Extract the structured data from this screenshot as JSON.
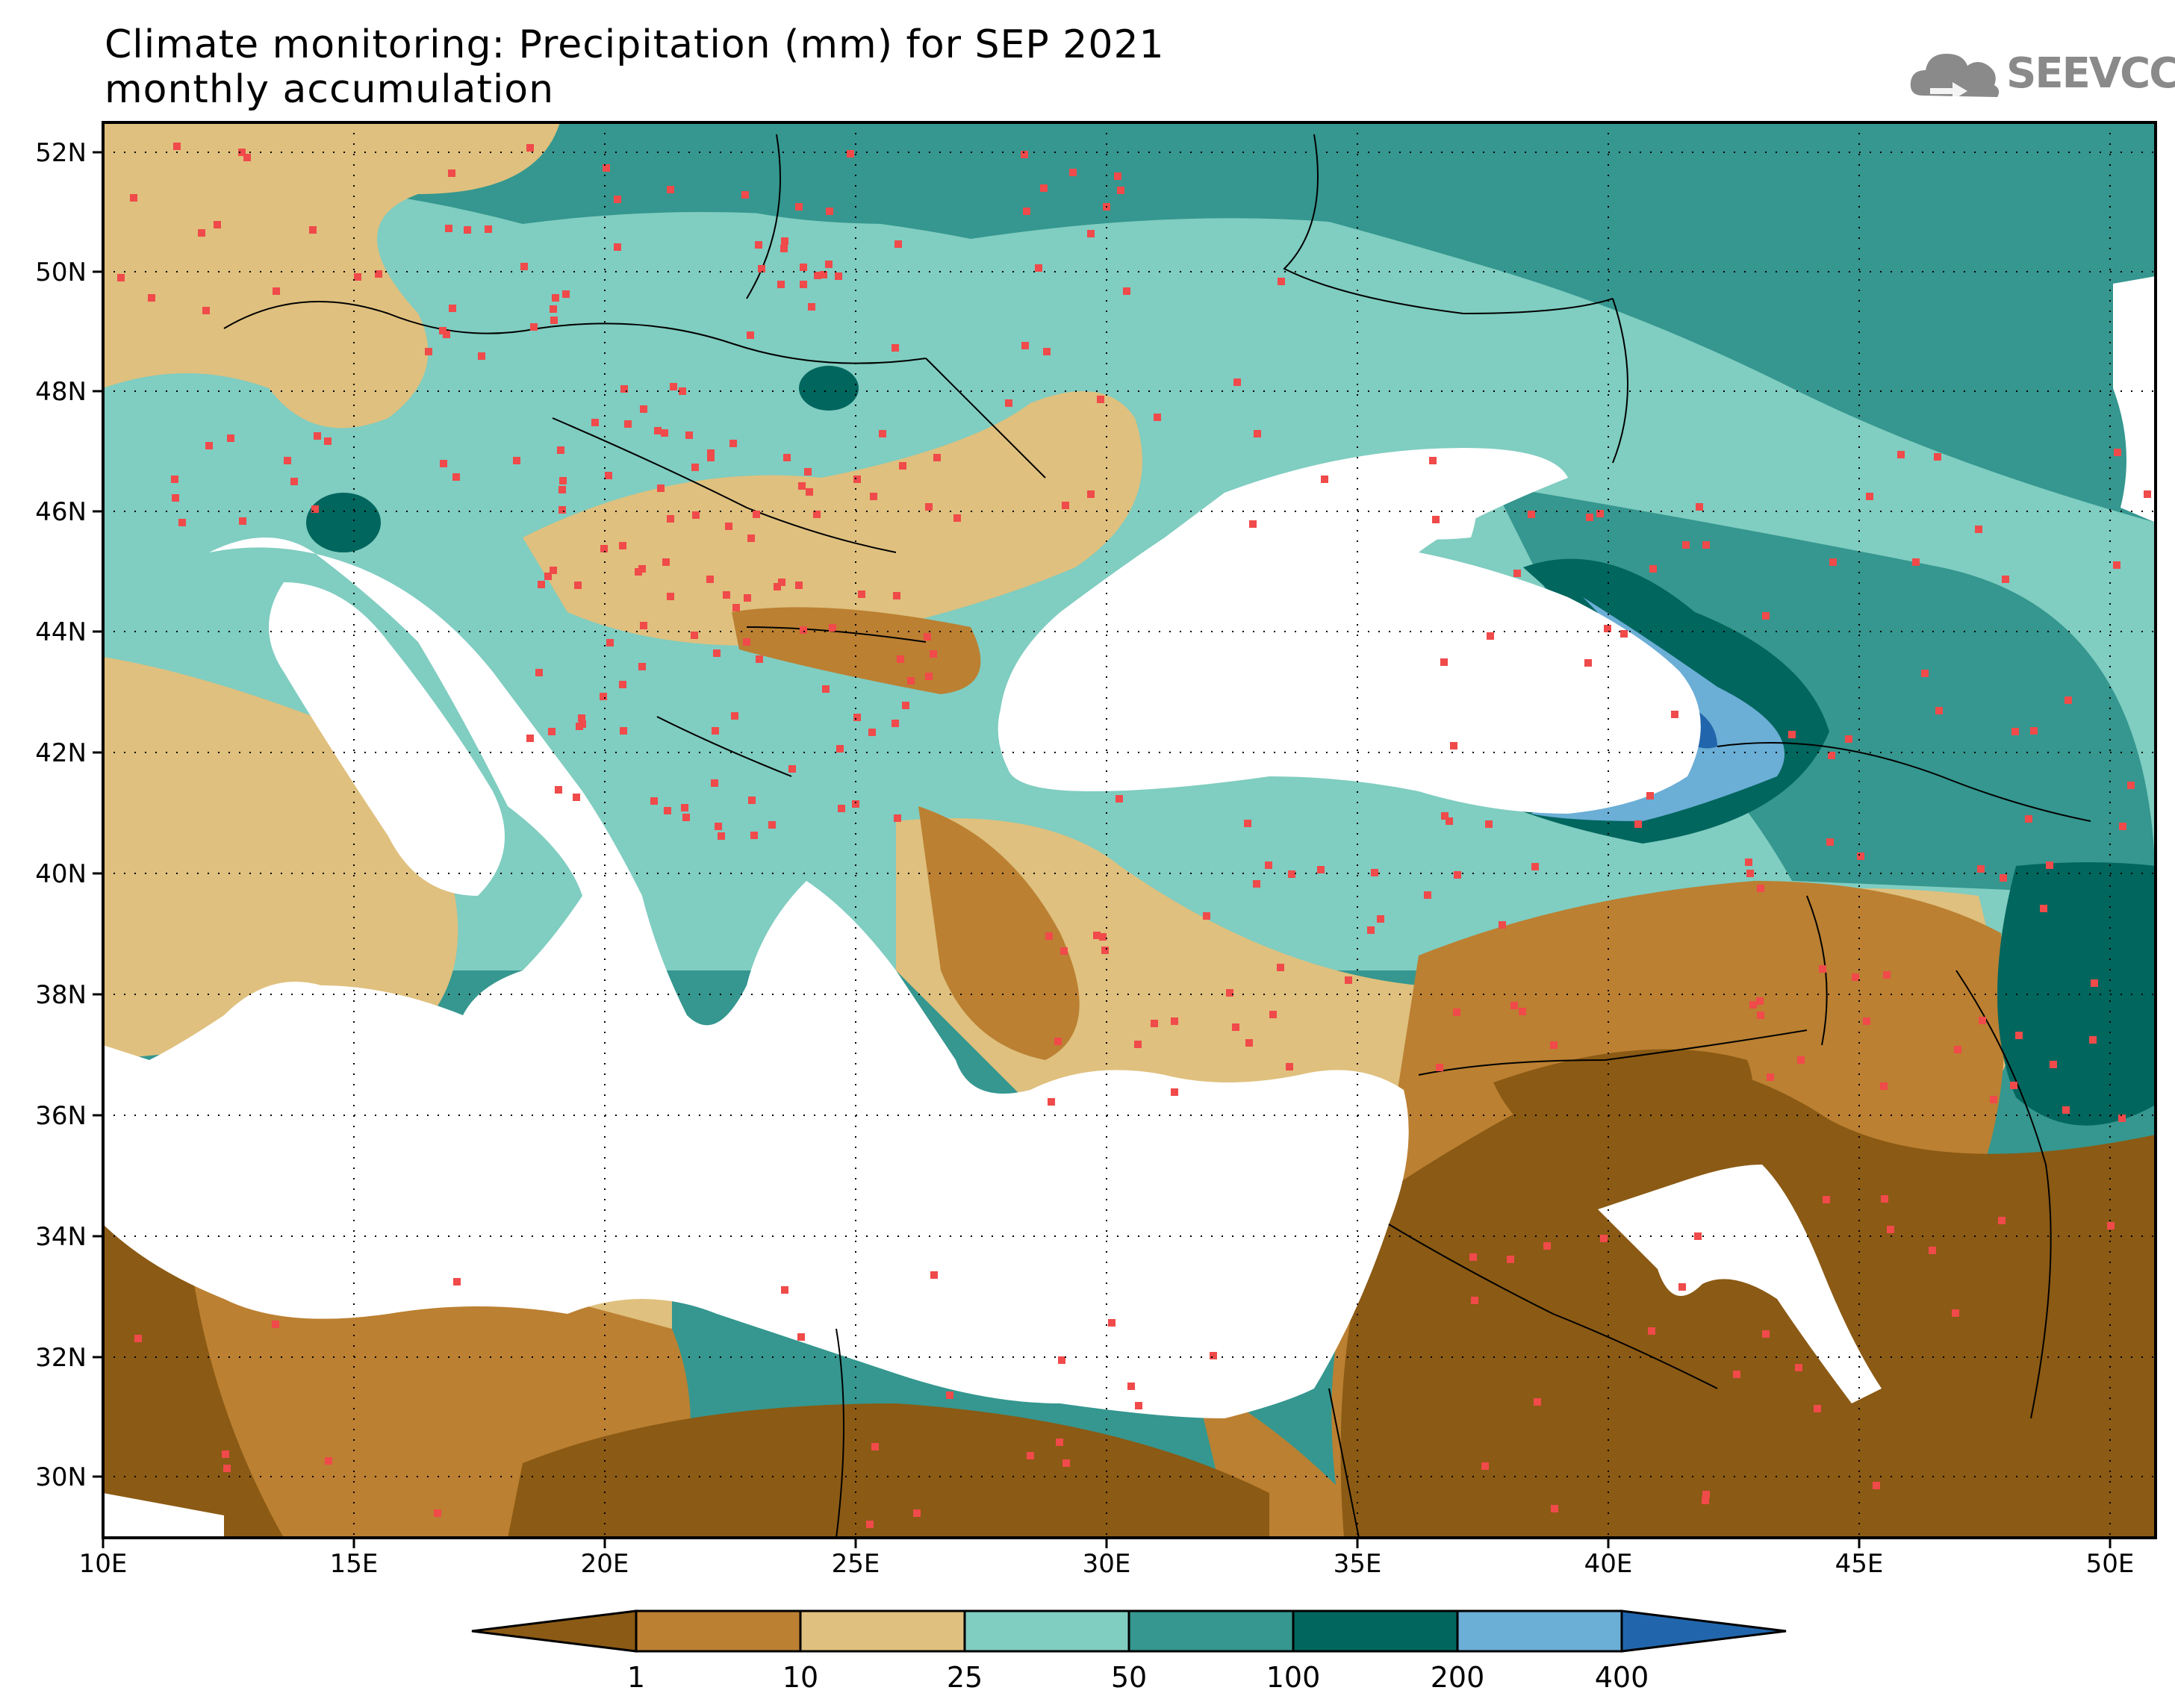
{
  "title": {
    "line1": "Climate monitoring: Precipitation (mm) for SEP 2021",
    "line2": "monthly accumulation"
  },
  "logo": {
    "text": "SEEVCCC"
  },
  "axes": {
    "lon_labels": [
      "10E",
      "15E",
      "20E",
      "25E",
      "30E",
      "35E",
      "40E",
      "45E",
      "50E"
    ],
    "lat_labels": [
      "52N",
      "50N",
      "48N",
      "46N",
      "44N",
      "42N",
      "40N",
      "38N",
      "36N",
      "34N",
      "32N",
      "30N"
    ]
  },
  "colorbar": {
    "thresholds": [
      "1",
      "10",
      "25",
      "50",
      "100",
      "200",
      "400"
    ],
    "colors": [
      "#8b5a14",
      "#bb8032",
      "#dfc07e",
      "#80cdc1",
      "#35978f",
      "#01665e",
      "#6baed6",
      "#2166ac"
    ]
  },
  "colors": {
    "station_marker": "#f04a4a",
    "land_no_data": "#ffffff",
    "border": "#000000"
  }
}
